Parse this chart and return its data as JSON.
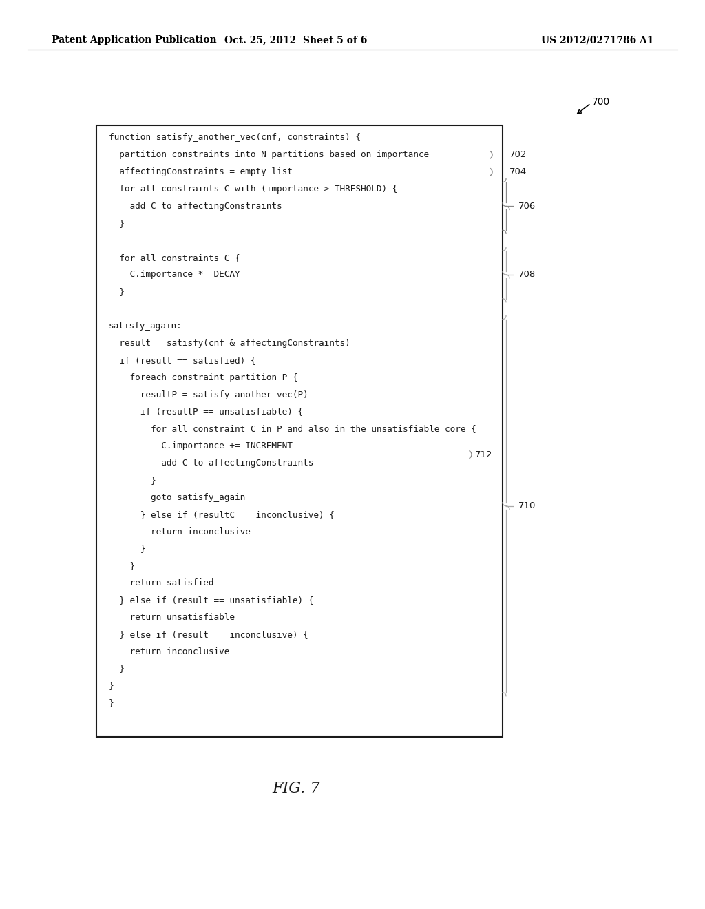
{
  "background_color": "#ffffff",
  "header_left": "Patent Application Publication",
  "header_center": "Oct. 25, 2012  Sheet 5 of 6",
  "header_right": "US 2012/0271786 A1",
  "figure_label": "FIG. 7",
  "code_lines": [
    "function satisfy_another_vec(cnf, constraints) {",
    "  partition constraints into N partitions based on importance",
    "  affectingConstraints = empty list",
    "  for all constraints C with (importance > THRESHOLD) {",
    "    add C to affectingConstraints",
    "  }",
    "",
    "  for all constraints C {",
    "    C.importance *= DECAY",
    "  }",
    "",
    "satisfy_again:",
    "  result = satisfy(cnf & affectingConstraints)",
    "  if (result == satisfied) {",
    "    foreach constraint partition P {",
    "      resultP = satisfy_another_vec(P)",
    "      if (resultP == unsatisfiable) {",
    "        for all constraint C in P and also in the unsatisfiable core {",
    "          C.importance += INCREMENT",
    "          add C to affectingConstraints",
    "        }",
    "        goto satisfy_again",
    "      } else if (resultC == inconclusive) {",
    "        return inconclusive",
    "      }",
    "    }",
    "    return satisfied",
    "  } else if (result == unsatisfiable) {",
    "    return unsatisfiable",
    "  } else if (result == inconclusive) {",
    "    return inconclusive",
    "  }",
    "}",
    "}"
  ]
}
